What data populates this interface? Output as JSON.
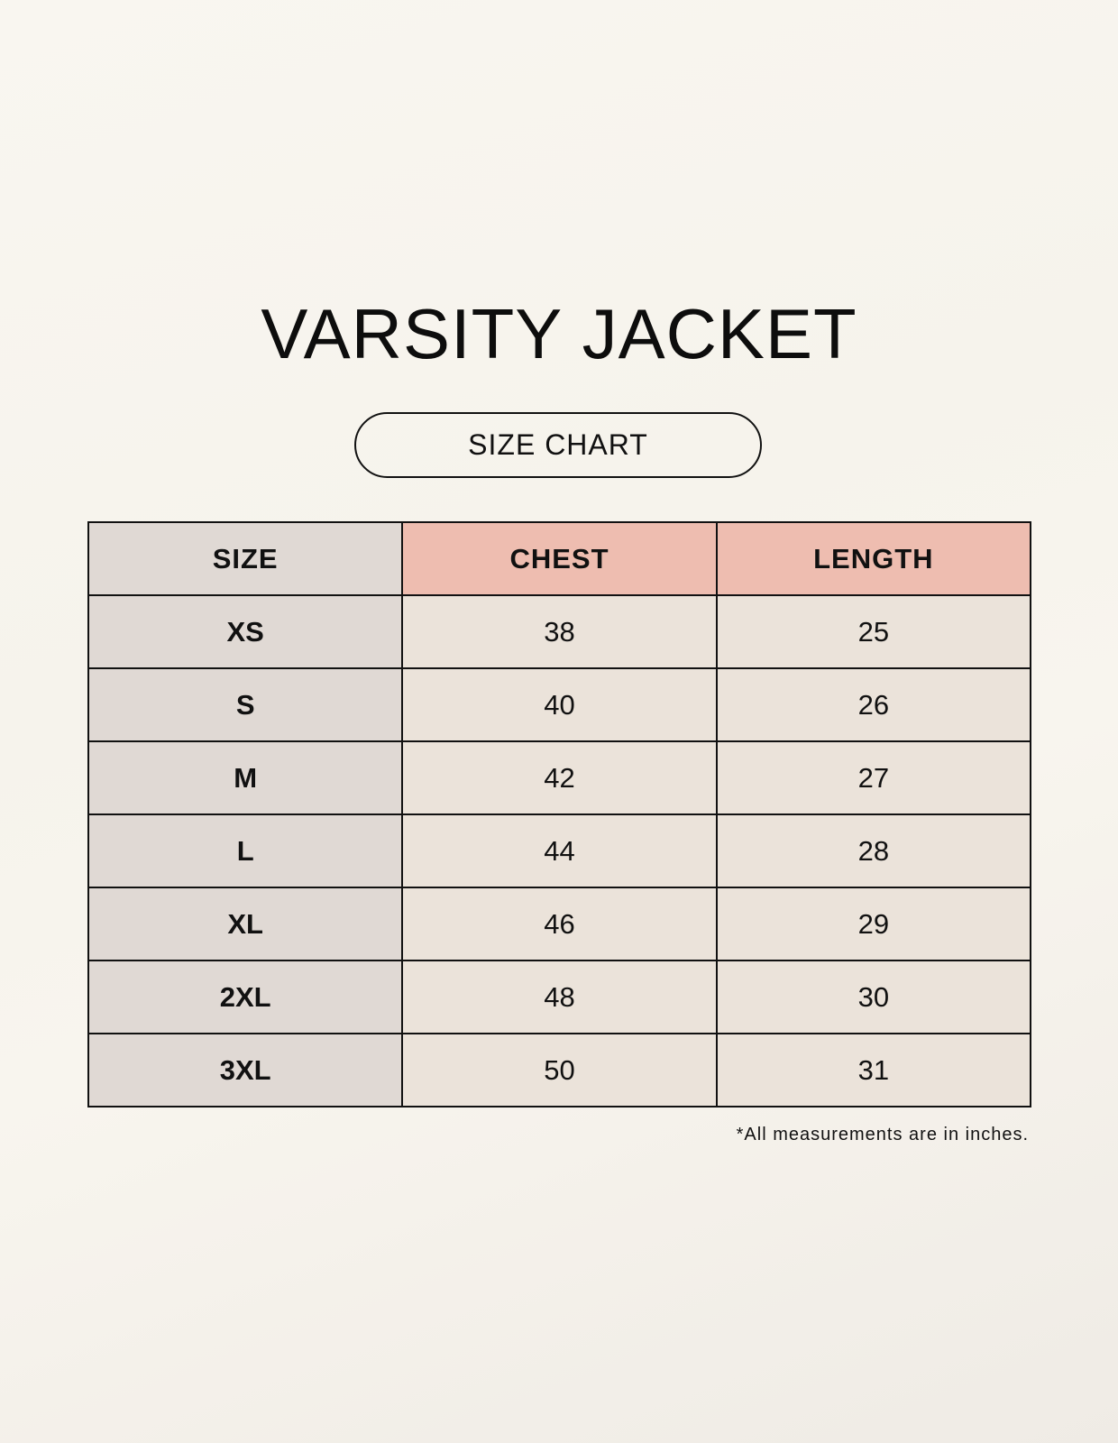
{
  "title": "VARSITY JACKET",
  "subtitle": "SIZE CHART",
  "table": {
    "headers": [
      "SIZE",
      "CHEST",
      "LENGTH"
    ],
    "rows": [
      [
        "XS",
        "38",
        "25"
      ],
      [
        "S",
        "40",
        "26"
      ],
      [
        "M",
        "42",
        "27"
      ],
      [
        "L",
        "44",
        "28"
      ],
      [
        "XL",
        "46",
        "29"
      ],
      [
        "2XL",
        "48",
        "30"
      ],
      [
        "3XL",
        "50",
        "31"
      ]
    ]
  },
  "footnote": "*All measurements are in inches.",
  "colors": {
    "size_column": "#e0d9d4",
    "header_accent": "#eebdb0",
    "cell": "#ebe3da",
    "background": "#f8f5ef"
  }
}
